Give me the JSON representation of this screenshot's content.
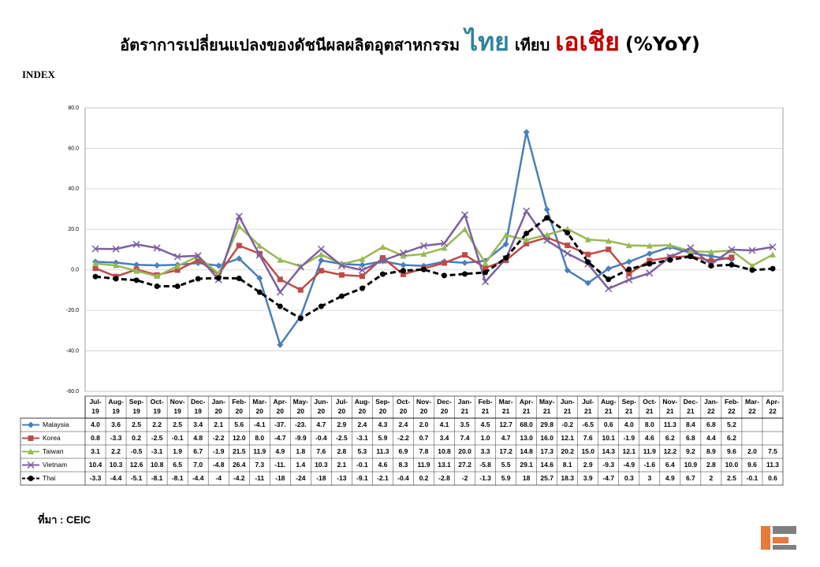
{
  "title_main": "อัตราการเปลี่ยนแปลงของดัชนีผลผลิตอุตสาหกรรม",
  "title_thai": "ไทย",
  "title_mid": "เทียบ",
  "title_asia": "เอเชีย",
  "title_suffix": "(%YoY)",
  "source": "ที่มา : CEIC",
  "chart_data": {
    "type": "line",
    "y_label": "INDEX",
    "categories": [
      "Jul-19",
      "Aug-19",
      "Sep-19",
      "Oct-19",
      "Nov-19",
      "Dec-19",
      "Jan-20",
      "Feb-20",
      "Mar-20",
      "Apr-20",
      "May-20",
      "Jun-20",
      "Jul-20",
      "Aug-20",
      "Sep-20",
      "Oct-20",
      "Nov-20",
      "Dec-20",
      "Jan-21",
      "Feb-21",
      "Mar-21",
      "Apr-21",
      "May-21",
      "Jun-21",
      "Jul-21",
      "Aug-21",
      "Sep-21",
      "Oct-21",
      "Nov-21",
      "Dec-21",
      "Jan-22",
      "Feb-22",
      "Mar-22",
      "Apr-22"
    ],
    "ylim": [
      -60,
      80
    ],
    "yticks": [
      {
        "value": -60,
        "label": "-60.0"
      },
      {
        "value": -40,
        "label": "-40.0"
      },
      {
        "value": -20,
        "label": "-20.0"
      },
      {
        "value": 0,
        "label": "0.0"
      },
      {
        "value": 20,
        "label": "20.0"
      },
      {
        "value": 40,
        "label": "40.0"
      },
      {
        "value": 60,
        "label": "60.0"
      },
      {
        "value": 80,
        "label": "80.0"
      }
    ],
    "grid": true,
    "series": [
      {
        "name": "Malaysia",
        "color": "#4a7ebb",
        "marker": "diamond",
        "dashed": false,
        "values": [
          4.0,
          3.6,
          2.5,
          2.2,
          2.5,
          3.4,
          2.1,
          5.6,
          -4.1,
          -37,
          -23,
          4.7,
          2.9,
          2.4,
          4.3,
          2.4,
          2.0,
          4.1,
          3.5,
          4.5,
          12.7,
          68.0,
          29.8,
          -0.2,
          -6.5,
          0.6,
          4.0,
          8.0,
          11.3,
          8.4,
          6.8,
          5.2,
          null,
          null
        ],
        "value_labels": [
          "4.0",
          "3.6",
          "2.5",
          "2.2",
          "2.5",
          "3.4",
          "2.1",
          "5.6",
          "-4.1",
          "-37.",
          "-23.",
          "4.7",
          "2.9",
          "2.4",
          "4.3",
          "2.4",
          "2.0",
          "4.1",
          "3.5",
          "4.5",
          "12.7",
          "68.0",
          "29.8",
          "-0.2",
          "-6.5",
          "0.6",
          "4.0",
          "8.0",
          "11.3",
          "8.4",
          "6.8",
          "5.2",
          null,
          null
        ]
      },
      {
        "name": "Korea",
        "color": "#be4b48",
        "marker": "square",
        "dashed": false,
        "values": [
          0.8,
          -3.3,
          0.2,
          -2.5,
          -0.1,
          4.8,
          -2.2,
          12.0,
          8.0,
          -4.7,
          -9.9,
          -0.4,
          -2.5,
          -3.1,
          5.9,
          -2.2,
          0.7,
          3.4,
          7.4,
          1.0,
          4.7,
          13.0,
          16.0,
          12.1,
          7.6,
          10.1,
          -1.9,
          4.6,
          6.2,
          6.8,
          4.4,
          6.2,
          null,
          null
        ],
        "value_labels": [
          "0.8",
          "-3.3",
          "0.2",
          "-2.5",
          "-0.1",
          "4.8",
          "-2.2",
          "12.0",
          "8.0",
          "-4.7",
          "-9.9",
          "-0.4",
          "-2.5",
          "-3.1",
          "5.9",
          "-2.2",
          "0.7",
          "3.4",
          "7.4",
          "1.0",
          "4.7",
          "13.0",
          "16.0",
          "12.1",
          "7.6",
          "10.1",
          "-1.9",
          "4.6",
          "6.2",
          "6.8",
          "4.4",
          "6.2",
          null,
          null
        ]
      },
      {
        "name": "Taiwan",
        "color": "#98b954",
        "marker": "triangle",
        "dashed": false,
        "values": [
          3.1,
          2.2,
          -0.5,
          -3.1,
          1.9,
          6.7,
          -1.9,
          21.5,
          11.9,
          4.9,
          1.8,
          7.6,
          2.8,
          5.3,
          11.3,
          6.9,
          7.8,
          10.8,
          20.0,
          3.3,
          17.2,
          14.8,
          17.3,
          20.2,
          15.0,
          14.3,
          12.1,
          11.9,
          12.2,
          9.2,
          8.9,
          9.6,
          2.0,
          7.5
        ],
        "value_labels": [
          "3.1",
          "2.2",
          "-0.5",
          "-3.1",
          "1.9",
          "6.7",
          "-1.9",
          "21.5",
          "11.9",
          "4.9",
          "1.8",
          "7.6",
          "2.8",
          "5.3",
          "11.3",
          "6.9",
          "7.8",
          "10.8",
          "20.0",
          "3.3",
          "17.2",
          "14.8",
          "17.3",
          "20.2",
          "15.0",
          "14.3",
          "12.1",
          "11.9",
          "12.2",
          "9.2",
          "8.9",
          "9.6",
          "2.0",
          "7.5"
        ]
      },
      {
        "name": "Vietnam",
        "color": "#7d60a0",
        "marker": "x",
        "dashed": false,
        "values": [
          10.4,
          10.3,
          12.6,
          10.8,
          6.5,
          7.0,
          -4.8,
          26.4,
          7.3,
          -11,
          1.4,
          10.3,
          2.1,
          -0.1,
          4.6,
          8.3,
          11.9,
          13.1,
          27.2,
          -5.8,
          5.5,
          29.1,
          14.6,
          8.1,
          2.9,
          -9.3,
          -4.9,
          -1.6,
          6.4,
          10.9,
          2.8,
          10.0,
          9.6,
          11.3
        ],
        "value_labels": [
          "10.4",
          "10.3",
          "12.6",
          "10.8",
          "6.5",
          "7.0",
          "-4.8",
          "26.4",
          "7.3",
          "-11.",
          "1.4",
          "10.3",
          "2.1",
          "-0.1",
          "4.6",
          "8.3",
          "11.9",
          "13.1",
          "27.2",
          "-5.8",
          "5.5",
          "29.1",
          "14.6",
          "8.1",
          "2.9",
          "-9.3",
          "-4.9",
          "-1.6",
          "6.4",
          "10.9",
          "2.8",
          "10.0",
          "9.6",
          "11.3"
        ]
      },
      {
        "name": "Thai",
        "color": "#000000",
        "marker": "circle",
        "dashed": true,
        "values": [
          -3.3,
          -4.4,
          -5.1,
          -8.1,
          -8.1,
          -4.4,
          -4,
          -4.2,
          -11,
          -18,
          -24,
          -18,
          -13,
          -9.1,
          -2.1,
          -0.4,
          0.2,
          -2.8,
          -2,
          -1.3,
          5.9,
          18,
          25.7,
          18.3,
          3.9,
          -4.7,
          0.3,
          3,
          4.9,
          6.7,
          2,
          2.5,
          -0.1,
          0.6
        ]
      }
    ]
  }
}
